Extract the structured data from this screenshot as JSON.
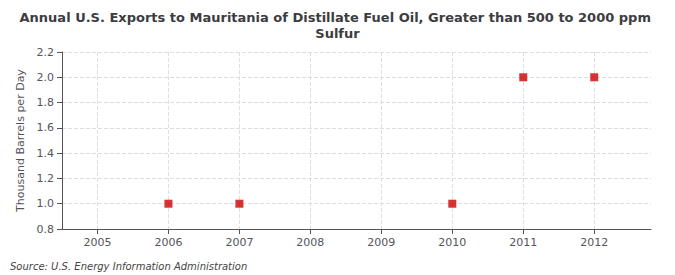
{
  "chart_data": {
    "type": "scatter",
    "title": "Annual U.S. Exports to Mauritania of Distillate Fuel Oil, Greater than 500 to 2000 ppm Sulfur",
    "ylabel": "Thousand Barrels per Day",
    "annotations": [
      "Source: U.S. Energy Information Administration"
    ],
    "x": [
      2006,
      2007,
      2010,
      2011,
      2012
    ],
    "values": [
      1.0,
      1.0,
      1.0,
      2.0,
      2.0
    ],
    "color": "#cc0000",
    "marker": "square",
    "xlim": [
      2004.5,
      2012.8
    ],
    "xticks": [
      2005,
      2006,
      2007,
      2008,
      2009,
      2010,
      2011,
      2012
    ],
    "ylim": [
      0.8,
      2.2
    ],
    "yticks": [
      0.8,
      {
        "value": 1.0,
        "label": "1.0"
      },
      1.2,
      1.4,
      1.6,
      1.8,
      {
        "value": 2.0,
        "label": "2.0"
      },
      2.2
    ],
    "grid": true
  }
}
